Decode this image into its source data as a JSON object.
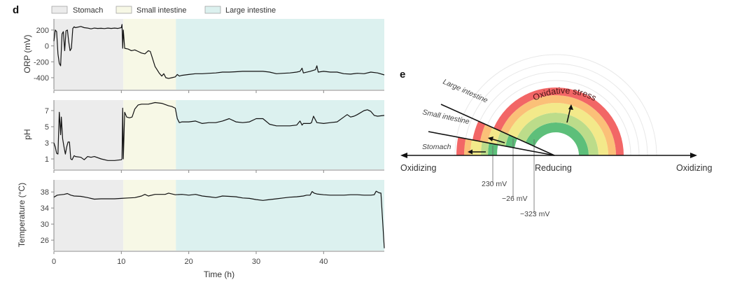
{
  "panel_d": {
    "letter": "d",
    "legend": [
      {
        "label": "Stomach",
        "color": "#ececec"
      },
      {
        "label": "Small intestine",
        "color": "#f7f8e6"
      },
      {
        "label": "Large intestine",
        "color": "#dcf1ef"
      }
    ],
    "xlabel": "Time (h)"
  },
  "panel_e": {
    "letter": "e",
    "left_axis_label": "Oxidizing",
    "center_label": "Reducing",
    "right_axis_label": "Oxidizing",
    "stress_label": "Oxidative stress",
    "organs": [
      {
        "label": "Large intestine",
        "mv": "−323 mV"
      },
      {
        "label": "Small intestine",
        "mv": "−26 mV"
      },
      {
        "label": "Stomach",
        "mv": "230 mV"
      }
    ],
    "band_colors": [
      "#5dbf7a",
      "#bcdc8a",
      "#f3e98a",
      "#fbc078",
      "#f26666"
    ],
    "faint_ring_color": "#e8e8e8"
  },
  "chart_data": [
    {
      "type": "line",
      "title": "ORP",
      "ylabel": "ORP (mV)",
      "xlabel": "",
      "xlim": [
        0,
        49
      ],
      "ylim": [
        -550,
        340
      ],
      "yticks": [
        200,
        0,
        -200,
        -400
      ],
      "xticks": [
        0,
        10,
        20,
        30,
        40
      ],
      "regions": [
        {
          "name": "Stomach",
          "x": [
            0,
            10.3
          ]
        },
        {
          "name": "Small intestine",
          "x": [
            10.3,
            18.1
          ]
        },
        {
          "name": "Large intestine",
          "x": [
            18.1,
            49
          ]
        }
      ],
      "series": [
        {
          "name": "ORP",
          "x": [
            0,
            0.2,
            0.4,
            0.6,
            0.8,
            1.0,
            1.2,
            1.4,
            1.6,
            1.8,
            2.0,
            2.2,
            2.4,
            2.6,
            2.8,
            3.0,
            3.2,
            3.5,
            4.0,
            4.5,
            5.0,
            5.5,
            6.0,
            6.5,
            7.0,
            7.5,
            8.0,
            8.5,
            9.0,
            9.5,
            10.0,
            10.1,
            10.2,
            10.3,
            10.5,
            11.0,
            11.5,
            12.0,
            12.5,
            13.0,
            13.5,
            14.0,
            14.3,
            14.6,
            15.0,
            15.3,
            15.6,
            16.0,
            16.3,
            16.6,
            17.0,
            17.5,
            18.0,
            18.3,
            18.6,
            19.0,
            20.0,
            21.0,
            22.0,
            23.0,
            24.0,
            25.0,
            26.0,
            27.0,
            28.0,
            29.0,
            30.0,
            31.0,
            32.0,
            33.0,
            34.0,
            35.0,
            36.0,
            36.5,
            36.8,
            37.0,
            38.0,
            38.8,
            39.0,
            39.2,
            40.0,
            41.0,
            42.0,
            43.0,
            44.0,
            45.0,
            46.0,
            47.0,
            48.0,
            49.0
          ],
          "values": [
            60,
            200,
            180,
            -100,
            -220,
            -250,
            150,
            180,
            -60,
            190,
            200,
            50,
            -60,
            -30,
            220,
            240,
            230,
            235,
            245,
            230,
            225,
            215,
            225,
            220,
            222,
            218,
            225,
            220,
            225,
            220,
            230,
            270,
            -30,
            200,
            -30,
            -40,
            -60,
            -50,
            -70,
            -90,
            -100,
            -60,
            -70,
            -150,
            -260,
            -300,
            -340,
            -380,
            -350,
            -400,
            -410,
            -400,
            -390,
            -360,
            -380,
            -370,
            -360,
            -350,
            -350,
            -345,
            -340,
            -330,
            -330,
            -325,
            -320,
            -320,
            -320,
            -320,
            -330,
            -350,
            -345,
            -340,
            -330,
            -320,
            -280,
            -340,
            -320,
            -300,
            -250,
            -330,
            -320,
            -330,
            -330,
            -350,
            -355,
            -345,
            -350,
            -330,
            -340,
            -365
          ]
        }
      ]
    },
    {
      "type": "line",
      "title": "pH",
      "ylabel": "pH",
      "xlabel": "",
      "xlim": [
        0,
        49
      ],
      "ylim": [
        -0.3,
        8.3
      ],
      "yticks": [
        7,
        5,
        3,
        1
      ],
      "xticks": [
        0,
        10,
        20,
        30,
        40
      ],
      "series": [
        {
          "name": "pH",
          "x": [
            0,
            0.2,
            0.4,
            0.6,
            0.8,
            1.0,
            1.1,
            1.3,
            1.5,
            1.7,
            1.9,
            2.1,
            2.3,
            2.5,
            2.7,
            3.0,
            3.2,
            4.0,
            4.5,
            5.0,
            5.5,
            6.0,
            7.0,
            8.0,
            9.0,
            10.0,
            10.1,
            10.2,
            10.3,
            10.5,
            10.8,
            11.2,
            11.6,
            12.0,
            12.5,
            13.0,
            14.0,
            15.0,
            16.0,
            17.0,
            17.5,
            18.0,
            18.3,
            18.6,
            19.0,
            20.0,
            21.0,
            22.0,
            23.0,
            24.0,
            25.0,
            26.0,
            27.0,
            28.0,
            29.0,
            30.0,
            31.0,
            32.0,
            33.0,
            34.0,
            35.0,
            36.0,
            36.5,
            36.8,
            37.0,
            38.0,
            38.2,
            38.5,
            39.0,
            40.0,
            41.0,
            42.0,
            43.0,
            43.5,
            44.0,
            44.5,
            45.0,
            46.0,
            46.5,
            47.0,
            47.5,
            48.0,
            49.0
          ],
          "values": [
            3.0,
            2.5,
            1.7,
            1.6,
            6.8,
            4.0,
            6.2,
            3.5,
            2.5,
            1.6,
            2.5,
            3.1,
            3.1,
            1.0,
            0.9,
            1.4,
            1.3,
            1.2,
            0.9,
            1.3,
            1.2,
            1.3,
            1.0,
            0.8,
            0.8,
            0.9,
            1.0,
            7.3,
            1.0,
            6.8,
            6.2,
            6.1,
            6.2,
            7.2,
            7.7,
            7.8,
            7.8,
            8.0,
            7.9,
            7.6,
            7.5,
            7.3,
            6.0,
            5.5,
            5.6,
            5.6,
            5.7,
            5.4,
            5.5,
            5.5,
            5.7,
            6.0,
            5.6,
            5.5,
            5.6,
            6.0,
            6.0,
            5.3,
            5.1,
            5.1,
            5.1,
            5.2,
            5.7,
            5.2,
            5.4,
            5.4,
            5.5,
            6.3,
            5.5,
            5.4,
            5.5,
            5.6,
            6.2,
            6.5,
            6.2,
            6.3,
            6.5,
            7.0,
            7.1,
            6.9,
            6.4,
            6.3,
            6.4
          ]
        }
      ]
    },
    {
      "type": "line",
      "title": "Temperature",
      "ylabel": "Temperature (°C)",
      "xlabel": "Time (h)",
      "xlim": [
        0,
        49
      ],
      "ylim": [
        23.4,
        41
      ],
      "yticks": [
        38,
        34,
        30,
        26
      ],
      "xticks": [
        0,
        10,
        20,
        30,
        40
      ],
      "series": [
        {
          "name": "Temperature",
          "x": [
            0,
            0.5,
            1.0,
            1.5,
            2.0,
            2.5,
            3.0,
            4.0,
            5.0,
            6.0,
            7.0,
            8.0,
            9.0,
            10.0,
            11.0,
            12.0,
            13.0,
            13.5,
            14.0,
            15.0,
            16.0,
            16.5,
            17.0,
            18.0,
            19.0,
            20.0,
            21.0,
            22.0,
            23.0,
            24.0,
            25.0,
            26.0,
            27.0,
            28.0,
            29.0,
            30.0,
            31.0,
            32.0,
            33.0,
            34.0,
            35.0,
            36.0,
            37.0,
            37.5,
            38.0,
            38.3,
            38.6,
            39.0,
            40.0,
            41.0,
            42.0,
            43.0,
            44.0,
            45.0,
            46.0,
            47.0,
            47.5,
            47.8,
            48.2,
            48.5,
            49.0
          ],
          "values": [
            36.7,
            37.2,
            37.3,
            37.4,
            37.6,
            37.2,
            37.0,
            36.9,
            36.6,
            36.2,
            36.3,
            36.3,
            36.3,
            36.4,
            36.5,
            36.6,
            37.0,
            37.4,
            37.0,
            37.4,
            37.4,
            37.4,
            37.7,
            37.3,
            37.4,
            37.2,
            37.4,
            37.0,
            36.8,
            36.6,
            37.0,
            36.9,
            36.8,
            36.5,
            36.4,
            36.1,
            35.9,
            36.1,
            36.3,
            36.5,
            36.7,
            36.8,
            37.0,
            37.2,
            37.2,
            38.1,
            37.7,
            37.5,
            37.3,
            37.2,
            37.2,
            37.2,
            37.3,
            37.3,
            37.2,
            37.2,
            37.3,
            38.2,
            37.8,
            37.7,
            24.0
          ]
        }
      ]
    }
  ]
}
